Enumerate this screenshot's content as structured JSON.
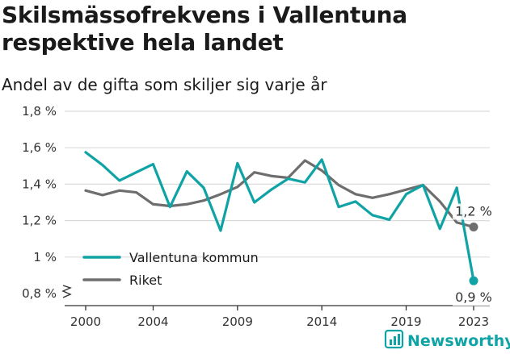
{
  "header": {
    "title": "Skilsmässofrekvens i Vallentuna respektive hela landet",
    "subtitle": "Andel av de gifta som skiljer sig varje år"
  },
  "brand": {
    "name": "Newsworthy",
    "icon": "newsworthy-logo-icon",
    "color": "#0fa3a6"
  },
  "chart_data": {
    "type": "line",
    "title": "Skilsmässofrekvens i Vallentuna respektive hela landet",
    "subtitle": "Andel av de gifta som skiljer sig varje år",
    "x": [
      2000,
      2001,
      2002,
      2003,
      2004,
      2005,
      2006,
      2007,
      2008,
      2009,
      2010,
      2011,
      2012,
      2013,
      2014,
      2015,
      2016,
      2017,
      2018,
      2019,
      2020,
      2021,
      2022,
      2023
    ],
    "x_ticks": [
      "2000",
      "2004",
      "2009",
      "2014",
      "2019",
      "2023"
    ],
    "y_ticks": [
      "0,8 %",
      "1 %",
      "1,2 %",
      "1,4 %",
      "1,6 %",
      "1,8 %"
    ],
    "ylim": [
      0.8,
      1.8
    ],
    "y_axis_break": true,
    "grid": true,
    "legend_position": "bottom-left",
    "series": [
      {
        "name": "Vallentuna kommun",
        "color": "#0fa3a6",
        "values": [
          1.575,
          1.505,
          1.42,
          1.465,
          1.51,
          1.275,
          1.47,
          1.38,
          1.145,
          1.515,
          1.3,
          1.37,
          1.43,
          1.41,
          1.535,
          1.275,
          1.305,
          1.23,
          1.205,
          1.345,
          1.395,
          1.155,
          1.38,
          0.87
        ],
        "end_label": "0,9 %"
      },
      {
        "name": "Riket",
        "color": "#6e6e6e",
        "values": [
          1.365,
          1.34,
          1.365,
          1.355,
          1.29,
          1.28,
          1.29,
          1.31,
          1.345,
          1.385,
          1.465,
          1.445,
          1.435,
          1.53,
          1.475,
          1.395,
          1.345,
          1.325,
          1.345,
          1.37,
          1.395,
          1.305,
          1.19,
          1.165
        ],
        "end_label": "1,2 %"
      }
    ]
  }
}
